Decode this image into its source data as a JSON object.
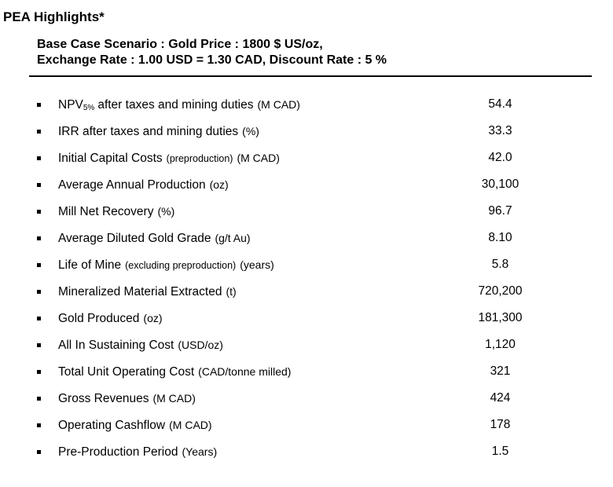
{
  "page": {
    "title": "PEA Highlights*"
  },
  "header": {
    "line1": "Base Case Scenario : Gold Price : 1800 $ US/oz,",
    "line2": "Exchange Rate : 1.00 USD = 1.30 CAD, Discount Rate : 5 %"
  },
  "metrics": {
    "rows": [
      {
        "main": "NPV",
        "sub": "5%",
        "main2": "after taxes and mining duties",
        "small": "",
        "unit": "(M CAD)",
        "value": "54.4"
      },
      {
        "main": "IRR after taxes and mining duties",
        "sub": "",
        "main2": "",
        "small": "",
        "unit": "(%)",
        "value": "33.3"
      },
      {
        "main": "Initial Capital Costs",
        "sub": "",
        "main2": "",
        "small": "(preproduction)",
        "unit": "(M CAD)",
        "value": "42.0"
      },
      {
        "main": "Average Annual Production",
        "sub": "",
        "main2": "",
        "small": "",
        "unit": "(oz)",
        "value": "30,100"
      },
      {
        "main": "Mill Net Recovery",
        "sub": "",
        "main2": "",
        "small": "",
        "unit": "(%)",
        "value": "96.7"
      },
      {
        "main": "Average Diluted Gold Grade",
        "sub": "",
        "main2": "",
        "small": "",
        "unit": "(g/t Au)",
        "value": "8.10"
      },
      {
        "main": "Life of Mine",
        "sub": "",
        "main2": "",
        "small": "(excluding preproduction)",
        "unit": "(years)",
        "value": "5.8"
      },
      {
        "main": "Mineralized Material Extracted",
        "sub": "",
        "main2": "",
        "small": "",
        "unit": "(t)",
        "value": "720,200"
      },
      {
        "main": "Gold Produced",
        "sub": "",
        "main2": "",
        "small": "",
        "unit": "(oz)",
        "value": "181,300"
      },
      {
        "main": "All In Sustaining Cost",
        "sub": "",
        "main2": "",
        "small": "",
        "unit": "(USD/oz)",
        "value": "1,120"
      },
      {
        "main": "Total Unit Operating Cost",
        "sub": "",
        "main2": "",
        "small": "",
        "unit": "(CAD/tonne milled)",
        "value": "321"
      },
      {
        "main": "Gross Revenues",
        "sub": "",
        "main2": "",
        "small": "",
        "unit": "(M CAD)",
        "value": "424"
      },
      {
        "main": "Operating Cashflow",
        "sub": "",
        "main2": "",
        "small": "",
        "unit": "(M CAD)",
        "value": "178"
      },
      {
        "main": "Pre-Production Period",
        "sub": "",
        "main2": "",
        "small": "",
        "unit": "(Years)",
        "value": "1.5"
      }
    ]
  },
  "colors": {
    "text": "#000000",
    "background": "#ffffff",
    "divider": "#000000"
  }
}
